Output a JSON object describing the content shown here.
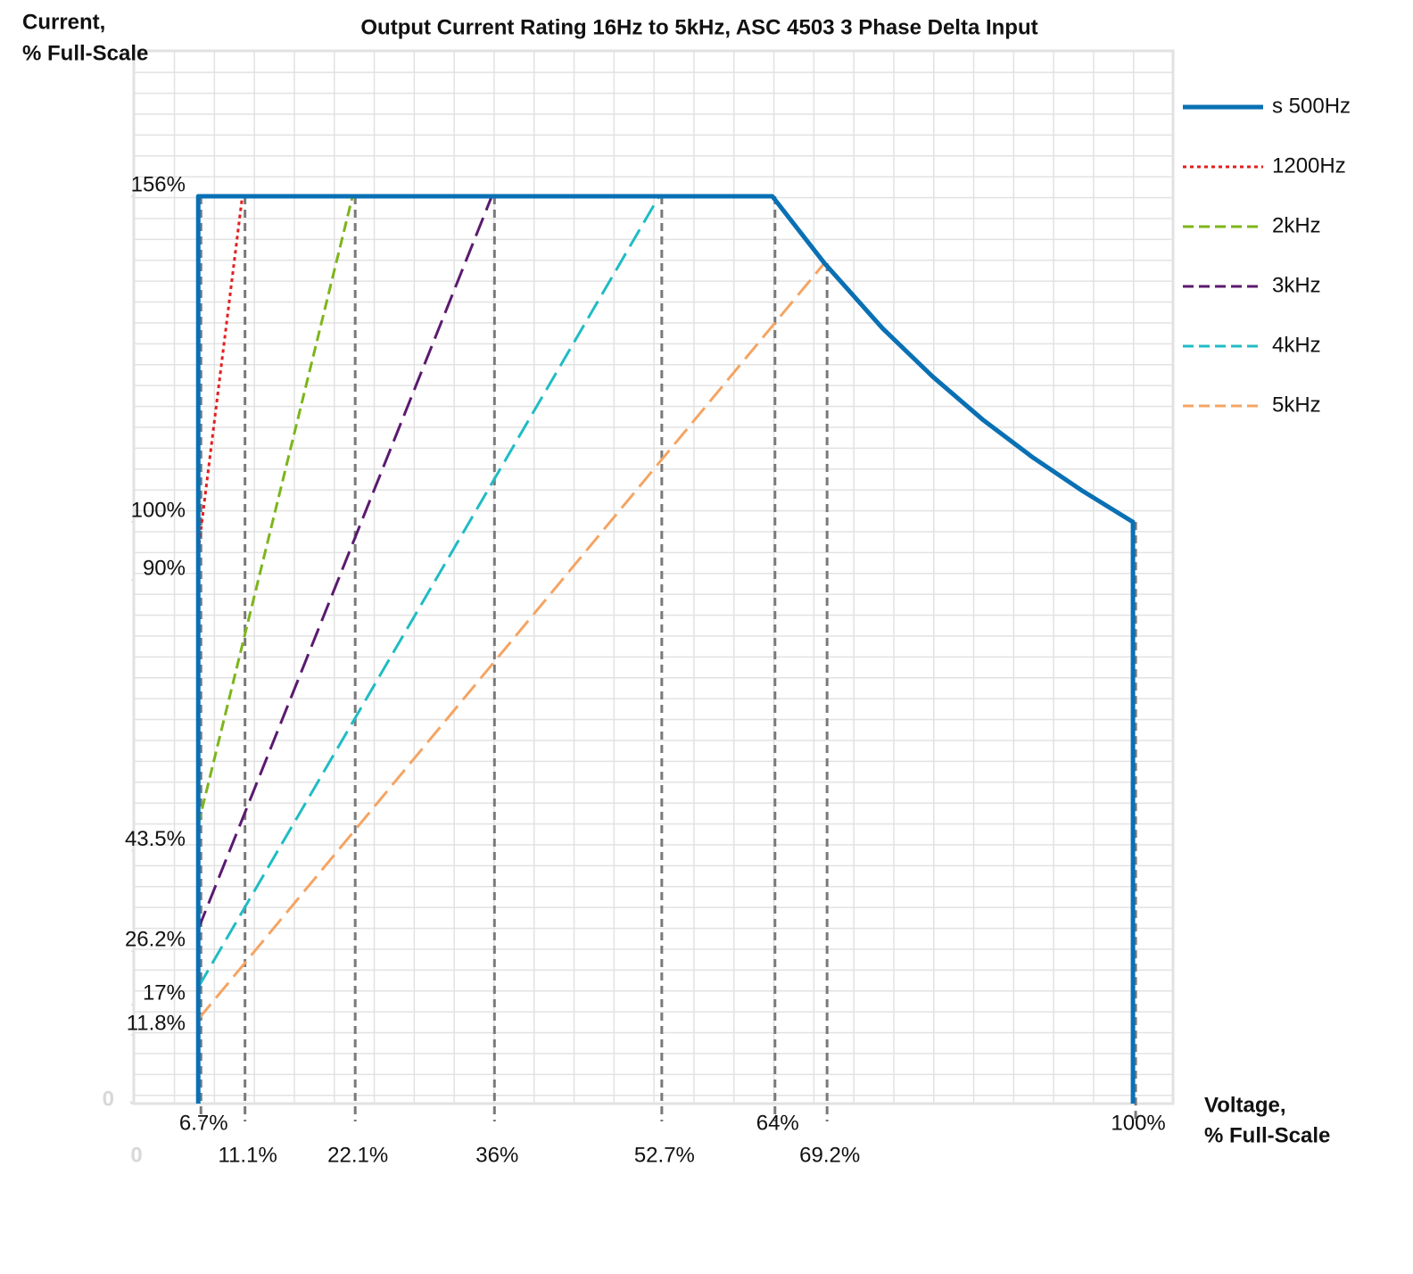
{
  "chart_data": {
    "type": "line",
    "title": "Output Current Rating 16Hz to 5kHz, ASC 4503 3 Phase Delta Input",
    "y_label": [
      "Current,",
      "% Full-Scale"
    ],
    "x_label": [
      "Voltage,",
      "% Full-Scale"
    ],
    "xlim": [
      0,
      104
    ],
    "ylim": [
      0,
      181
    ],
    "xticks": [
      0,
      {
        "value": 6.7,
        "label": "6.7%"
      },
      {
        "value": 11.1,
        "label": "11.1%"
      },
      {
        "value": 22.1,
        "label": "22.1%"
      },
      {
        "value": 36,
        "label": "36%"
      },
      {
        "value": 52.7,
        "label": "52.7%"
      },
      {
        "value": 64,
        "label": "64%"
      },
      {
        "value": 69.2,
        "label": "69.2%"
      },
      {
        "value": 100,
        "label": "100%"
      }
    ],
    "yticks": [
      0,
      {
        "value": 11.8,
        "label": "11.8%"
      },
      {
        "value": 17,
        "label": "17%"
      },
      {
        "value": 26.2,
        "label": "26.2%"
      },
      {
        "value": 43.5,
        "label": "43.5%"
      },
      {
        "value": 90,
        "label": "90%"
      },
      {
        "value": 100,
        "label": "100%"
      },
      {
        "value": 156,
        "label": "156%"
      }
    ],
    "grid": true,
    "legend": "right",
    "series": [
      {
        "name": "s 500Hz",
        "color": "#0a70b4",
        "style": "solid",
        "x": [
          6.7,
          6.7,
          64,
          69.2,
          75,
          80,
          85,
          90,
          95,
          100,
          100
        ],
        "values": [
          0,
          156,
          156,
          144.5,
          133.3,
          125,
          117.6,
          111.1,
          105.3,
          100,
          0
        ]
      },
      {
        "name": "1200Hz",
        "color": "#e31e1e",
        "style": "dotted",
        "x": [
          6.7,
          11.1
        ],
        "values": [
          95,
          156
        ]
      },
      {
        "name": "2kHz",
        "color": "#7db51a",
        "style": "dashed",
        "x": [
          6.7,
          22.1
        ],
        "values": [
          48,
          156
        ]
      },
      {
        "name": "3kHz",
        "color": "#5b1a6f",
        "style": "longdash",
        "x": [
          6.7,
          36
        ],
        "values": [
          30,
          156
        ]
      },
      {
        "name": "4kHz",
        "color": "#1fbcc4",
        "style": "longdash",
        "x": [
          6.7,
          52.7
        ],
        "values": [
          20,
          156
        ]
      },
      {
        "name": "5kHz",
        "color": "#f5a462",
        "style": "longdash",
        "x": [
          6.7,
          69.2
        ],
        "values": [
          14.5,
          144.5
        ]
      }
    ]
  }
}
